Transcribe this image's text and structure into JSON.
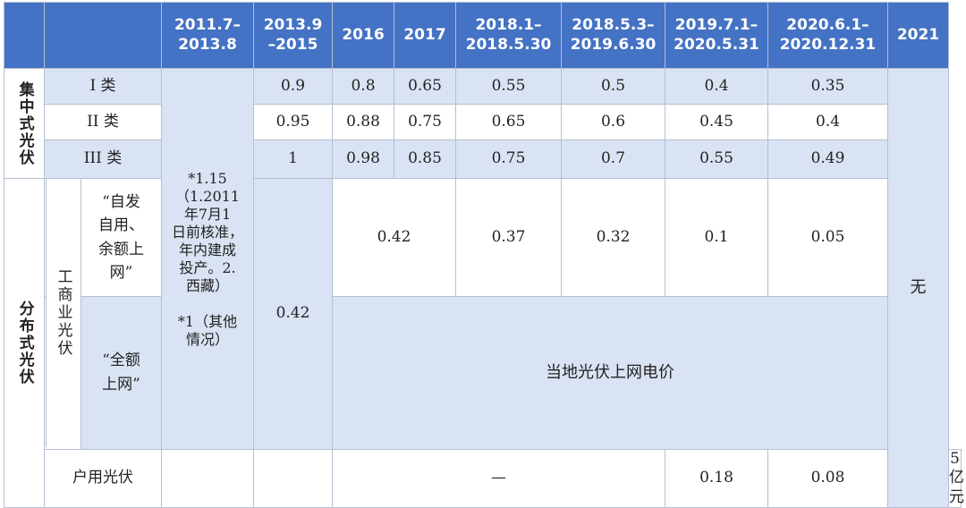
{
  "headers": {
    "col0": "",
    "col1": "",
    "p2011": [
      "2011.7–",
      "2013.8"
    ],
    "p2013": [
      "2013.9",
      "–2015"
    ],
    "y2016": "2016",
    "y2017": "2017",
    "p2018a": [
      "2018.1–",
      "2018.5.30"
    ],
    "p2018b": [
      "2018.5.3–",
      "2019.6.30"
    ],
    "p2019": [
      "2019.7.1–",
      "2020.5.31"
    ],
    "p2020": [
      "2020.6.1–",
      "2020.12.31"
    ],
    "y2021": "2021"
  },
  "centralized": {
    "label": "集中式光伏",
    "rows": [
      {
        "name": "I 类",
        "values": [
          "0.9",
          "0.8",
          "0.65",
          "0.55",
          "0.5",
          "0.4",
          "0.35"
        ]
      },
      {
        "name": "II 类",
        "values": [
          "0.95",
          "0.88",
          "0.75",
          "0.65",
          "0.6",
          "0.45",
          "0.4"
        ]
      },
      {
        "name": "III 类",
        "values": [
          "1",
          "0.98",
          "0.85",
          "0.75",
          "0.7",
          "0.55",
          "0.49"
        ]
      }
    ]
  },
  "note_2011": [
    "*1.15",
    "（1.2011",
    "年7月1",
    "日前核准，",
    "年内建成",
    "投产。2.",
    "西藏）",
    "",
    "*1（其他",
    "情况）"
  ],
  "distributed": {
    "label": "分布式光伏",
    "commercial_label": "工商业光伏",
    "self_use": {
      "name": [
        "“自发",
        "自用、",
        "余额上",
        "网”"
      ],
      "v2016_2017": "0.42",
      "v2018a": "0.37",
      "v2018b": "0.32",
      "v2019": "0.1",
      "v2020": "0.05"
    },
    "full_grid": {
      "name": [
        "“全额",
        "上网”"
      ],
      "value": "当地光伏上网电价"
    },
    "p2013_value": "0.42",
    "household": {
      "name": "户用光伏",
      "dash": "—",
      "v2019": "0.18",
      "v2020": "0.08",
      "v2021": "5亿元"
    },
    "y2021_value": "无"
  }
}
